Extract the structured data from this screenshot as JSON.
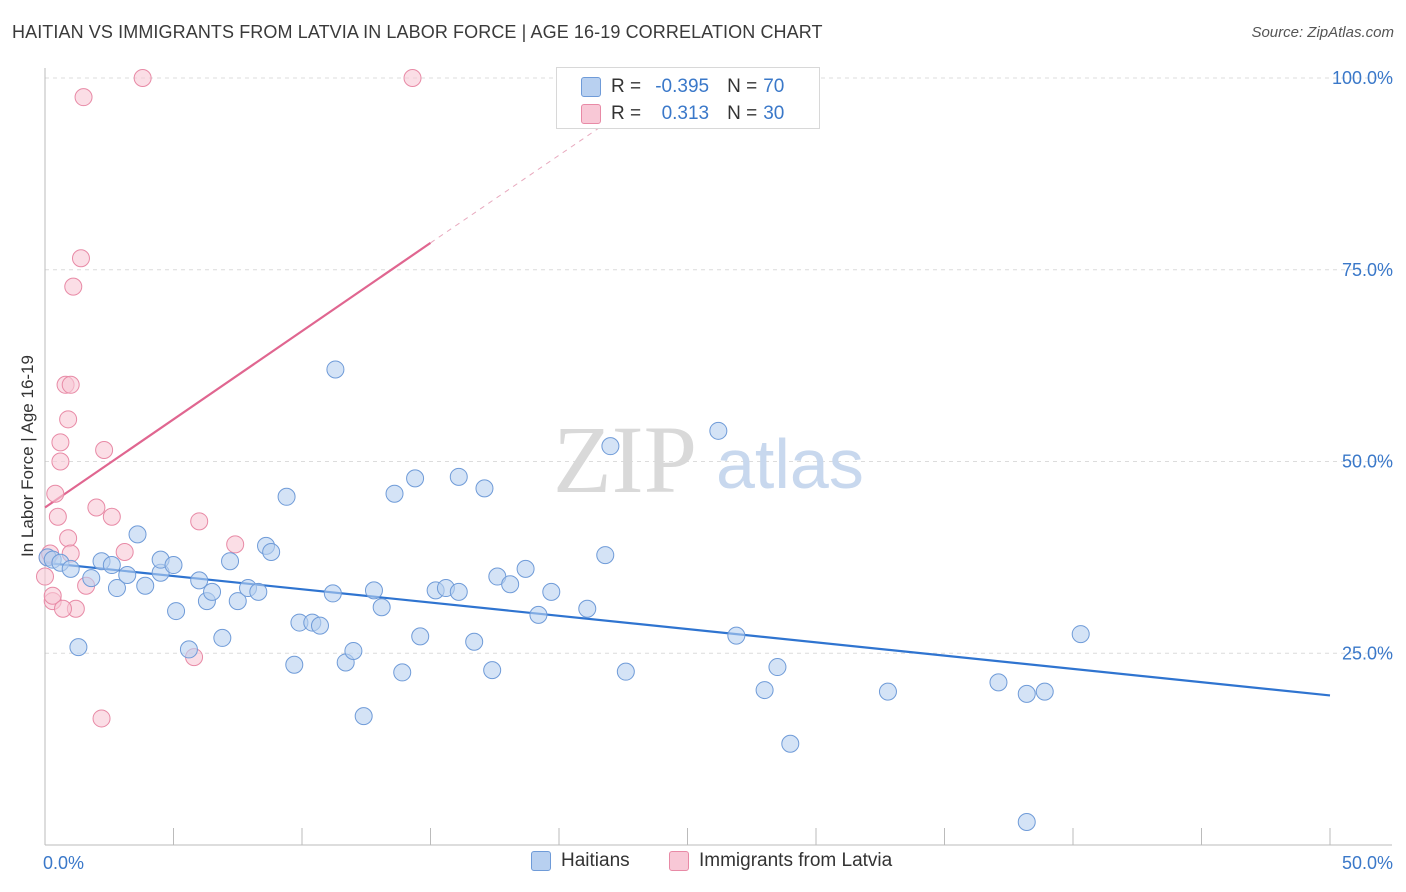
{
  "title": "HAITIAN VS IMMIGRANTS FROM LATVIA IN LABOR FORCE | AGE 16-19 CORRELATION CHART",
  "source": "Source: ZipAtlas.com",
  "watermark": {
    "zip": "ZIP",
    "atlas": "atlas"
  },
  "legend": {
    "haitians": "Haitians",
    "latvia": "Immigrants from Latvia"
  },
  "corr": {
    "row1": {
      "r_label": "R =",
      "r_value": "-0.395",
      "n_label": "N =",
      "n_value": "70"
    },
    "row2": {
      "r_label": "R =",
      "r_value": "0.313",
      "n_label": "N =",
      "n_value": "30"
    }
  },
  "colors": {
    "blue_fill": "#b8d0f0",
    "blue_stroke": "#6f9bd8",
    "blue_line": "#2f74d0",
    "pink_fill": "#f8c8d6",
    "pink_stroke": "#e88aa6",
    "pink_line": "#e06690",
    "axis_text": "#3a78c9",
    "grid": "#dcdcdc"
  },
  "chart_data": {
    "type": "scatter",
    "ylabel": "In Labor Force | Age 16-19",
    "xlim": [
      0,
      50
    ],
    "ylim": [
      0,
      100
    ],
    "x_tick_labels": [
      "0.0%",
      "50.0%"
    ],
    "y_ticks": [
      25,
      50,
      75,
      100
    ],
    "y_tick_labels": [
      "25.0%",
      "50.0%",
      "75.0%",
      "100.0%"
    ],
    "series": [
      {
        "name": "Haitians",
        "trend": {
          "x": [
            0,
            50
          ],
          "y": [
            36.8,
            19.5
          ]
        },
        "points": [
          [
            0.1,
            37.5
          ],
          [
            0.3,
            37.2
          ],
          [
            0.6,
            36.8
          ],
          [
            1.0,
            36.0
          ],
          [
            1.8,
            34.8
          ],
          [
            2.2,
            37.0
          ],
          [
            2.6,
            36.5
          ],
          [
            2.8,
            33.5
          ],
          [
            3.2,
            35.2
          ],
          [
            3.6,
            40.5
          ],
          [
            3.9,
            33.8
          ],
          [
            4.5,
            35.5
          ],
          [
            4.5,
            37.2
          ],
          [
            5.0,
            36.5
          ],
          [
            5.1,
            30.5
          ],
          [
            5.6,
            25.5
          ],
          [
            6.0,
            34.5
          ],
          [
            6.3,
            31.8
          ],
          [
            6.5,
            33.0
          ],
          [
            6.9,
            27.0
          ],
          [
            7.2,
            37.0
          ],
          [
            7.5,
            31.8
          ],
          [
            7.9,
            33.5
          ],
          [
            8.3,
            33.0
          ],
          [
            8.6,
            39.0
          ],
          [
            8.8,
            38.2
          ],
          [
            9.4,
            45.4
          ],
          [
            9.7,
            23.5
          ],
          [
            9.9,
            29.0
          ],
          [
            10.4,
            29.0
          ],
          [
            10.7,
            28.6
          ],
          [
            11.2,
            32.8
          ],
          [
            11.3,
            62.0
          ],
          [
            11.7,
            23.8
          ],
          [
            12.0,
            25.3
          ],
          [
            12.4,
            16.8
          ],
          [
            12.8,
            33.2
          ],
          [
            13.1,
            31.0
          ],
          [
            13.6,
            45.8
          ],
          [
            13.9,
            22.5
          ],
          [
            14.4,
            47.8
          ],
          [
            14.6,
            27.2
          ],
          [
            15.2,
            33.2
          ],
          [
            15.6,
            33.5
          ],
          [
            16.1,
            48.0
          ],
          [
            16.1,
            33.0
          ],
          [
            16.7,
            26.5
          ],
          [
            17.1,
            46.5
          ],
          [
            17.4,
            22.8
          ],
          [
            17.6,
            35.0
          ],
          [
            18.1,
            34.0
          ],
          [
            18.7,
            36.0
          ],
          [
            19.2,
            30.0
          ],
          [
            19.7,
            33.0
          ],
          [
            21.1,
            30.8
          ],
          [
            21.8,
            37.8
          ],
          [
            22.0,
            52.0
          ],
          [
            22.6,
            22.6
          ],
          [
            26.2,
            54.0
          ],
          [
            26.9,
            27.3
          ],
          [
            28.0,
            20.2
          ],
          [
            28.5,
            23.2
          ],
          [
            29.0,
            13.2
          ],
          [
            32.8,
            20.0
          ],
          [
            37.1,
            21.2
          ],
          [
            38.2,
            3.0
          ],
          [
            38.2,
            19.7
          ],
          [
            38.9,
            20.0
          ],
          [
            40.3,
            27.5
          ],
          [
            1.3,
            25.8
          ]
        ]
      },
      {
        "name": "Immigrants from Latvia",
        "trend": {
          "x": [
            0,
            15
          ],
          "y": [
            44.0,
            78.5
          ],
          "dashed_to": {
            "x": 22,
            "y": 94.5
          }
        },
        "points": [
          [
            0.0,
            35.0
          ],
          [
            0.1,
            37.5
          ],
          [
            0.2,
            38.0
          ],
          [
            0.3,
            31.8
          ],
          [
            0.3,
            32.5
          ],
          [
            0.4,
            45.8
          ],
          [
            0.5,
            42.8
          ],
          [
            0.6,
            52.5
          ],
          [
            0.6,
            50.0
          ],
          [
            0.8,
            60.0
          ],
          [
            0.9,
            40.0
          ],
          [
            0.9,
            55.5
          ],
          [
            1.0,
            38.0
          ],
          [
            1.0,
            60.0
          ],
          [
            1.1,
            72.8
          ],
          [
            1.2,
            30.8
          ],
          [
            1.4,
            76.5
          ],
          [
            1.5,
            97.5
          ],
          [
            1.6,
            33.8
          ],
          [
            2.0,
            44.0
          ],
          [
            2.2,
            16.5
          ],
          [
            2.3,
            51.5
          ],
          [
            2.6,
            42.8
          ],
          [
            3.1,
            38.2
          ],
          [
            3.8,
            100.0
          ],
          [
            5.8,
            24.5
          ],
          [
            6.0,
            42.2
          ],
          [
            7.4,
            39.2
          ],
          [
            14.3,
            100.0
          ],
          [
            0.7,
            30.8
          ]
        ]
      }
    ]
  }
}
